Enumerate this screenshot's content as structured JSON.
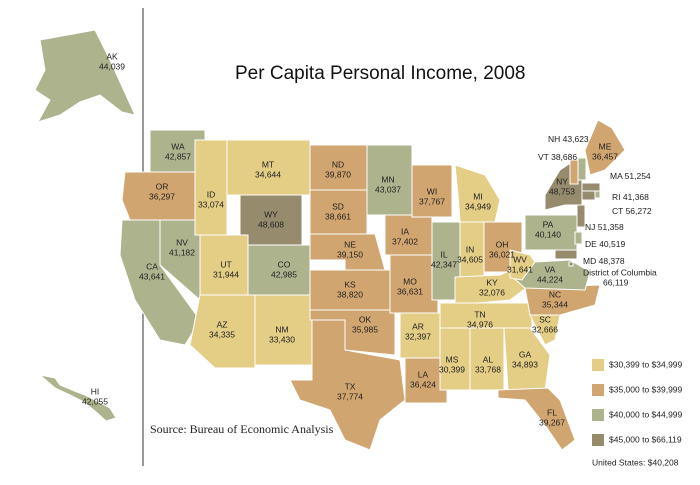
{
  "header": {
    "title": "Per Capita Personal Income,",
    "year": "2008"
  },
  "source": "Source: Bureau of Economic Analysis",
  "note": "United States: $40,208",
  "legend": [
    {
      "label": "$30,399 to $34,999",
      "color": "#e4cd84"
    },
    {
      "label": "$35,000 to $39,999",
      "color": "#d1a56f"
    },
    {
      "label": "$40,000 to $44,999",
      "color": "#adb38d"
    },
    {
      "label": "$45,000 to $66,119",
      "color": "#968b6c"
    }
  ],
  "states": [
    {
      "abbr": "WA",
      "value": "42,857",
      "color": "#adb38d"
    },
    {
      "abbr": "OR",
      "value": "36,297",
      "color": "#d1a56f"
    },
    {
      "abbr": "CA",
      "value": "43,641",
      "color": "#adb38d"
    },
    {
      "abbr": "NV",
      "value": "41,182",
      "color": "#adb38d"
    },
    {
      "abbr": "ID",
      "value": "33,074",
      "color": "#e4cd84"
    },
    {
      "abbr": "MT",
      "value": "34,644",
      "color": "#e4cd84"
    },
    {
      "abbr": "WY",
      "value": "48,608",
      "color": "#968b6c"
    },
    {
      "abbr": "UT",
      "value": "31,944",
      "color": "#e4cd84"
    },
    {
      "abbr": "CO",
      "value": "42,985",
      "color": "#adb38d"
    },
    {
      "abbr": "AZ",
      "value": "34,335",
      "color": "#e4cd84"
    },
    {
      "abbr": "NM",
      "value": "33,430",
      "color": "#e4cd84"
    },
    {
      "abbr": "ND",
      "value": "39,870",
      "color": "#d1a56f"
    },
    {
      "abbr": "SD",
      "value": "38,661",
      "color": "#d1a56f"
    },
    {
      "abbr": "NE",
      "value": "39,150",
      "color": "#d1a56f"
    },
    {
      "abbr": "KS",
      "value": "38,820",
      "color": "#d1a56f"
    },
    {
      "abbr": "OK",
      "value": "35,985",
      "color": "#d1a56f"
    },
    {
      "abbr": "TX",
      "value": "37,774",
      "color": "#d1a56f"
    },
    {
      "abbr": "MN",
      "value": "43,037",
      "color": "#adb38d"
    },
    {
      "abbr": "IA",
      "value": "37,402",
      "color": "#d1a56f"
    },
    {
      "abbr": "MO",
      "value": "36,631",
      "color": "#d1a56f"
    },
    {
      "abbr": "AR",
      "value": "32,397",
      "color": "#e4cd84"
    },
    {
      "abbr": "LA",
      "value": "36,424",
      "color": "#d1a56f"
    },
    {
      "abbr": "WI",
      "value": "37,767",
      "color": "#d1a56f"
    },
    {
      "abbr": "IL",
      "value": "42,347",
      "color": "#adb38d"
    },
    {
      "abbr": "MI",
      "value": "34,949",
      "color": "#e4cd84"
    },
    {
      "abbr": "IN",
      "value": "34,605",
      "color": "#e4cd84"
    },
    {
      "abbr": "OH",
      "value": "36,021",
      "color": "#d1a56f"
    },
    {
      "abbr": "KY",
      "value": "32,076",
      "color": "#e4cd84"
    },
    {
      "abbr": "TN",
      "value": "34,976",
      "color": "#e4cd84"
    },
    {
      "abbr": "MS",
      "value": "30,399",
      "color": "#e4cd84"
    },
    {
      "abbr": "AL",
      "value": "33,768",
      "color": "#e4cd84"
    },
    {
      "abbr": "GA",
      "value": "34,893",
      "color": "#e4cd84"
    },
    {
      "abbr": "FL",
      "value": "39,267",
      "color": "#d1a56f"
    },
    {
      "abbr": "SC",
      "value": "32,666",
      "color": "#e4cd84"
    },
    {
      "abbr": "NC",
      "value": "35,344",
      "color": "#d1a56f"
    },
    {
      "abbr": "VA",
      "value": "44,224",
      "color": "#adb38d"
    },
    {
      "abbr": "WV",
      "value": "31,641",
      "color": "#e4cd84"
    },
    {
      "abbr": "PA",
      "value": "40,140",
      "color": "#adb38d"
    },
    {
      "abbr": "NY",
      "value": "48,753",
      "color": "#968b6c"
    },
    {
      "abbr": "ME",
      "value": "36,457",
      "color": "#d1a56f"
    },
    {
      "abbr": "VT",
      "value": "38,686",
      "color": "#d1a56f"
    },
    {
      "abbr": "NH",
      "value": "43,623",
      "color": "#adb38d"
    },
    {
      "abbr": "MA",
      "value": "51,254",
      "color": "#968b6c"
    },
    {
      "abbr": "RI",
      "value": "41,368",
      "color": "#adb38d"
    },
    {
      "abbr": "CT",
      "value": "56,272",
      "color": "#968b6c"
    },
    {
      "abbr": "NJ",
      "value": "51,358",
      "color": "#968b6c"
    },
    {
      "abbr": "DE",
      "value": "40,519",
      "color": "#adb38d"
    },
    {
      "abbr": "MD",
      "value": "48,378",
      "color": "#968b6c"
    },
    {
      "abbr": "District of Columbia",
      "value": "66,119",
      "color": "#968b6c"
    },
    {
      "abbr": "AK",
      "value": "44,039",
      "color": "#adb38d"
    },
    {
      "abbr": "HI",
      "value": "42,055",
      "color": "#adb38d"
    }
  ]
}
